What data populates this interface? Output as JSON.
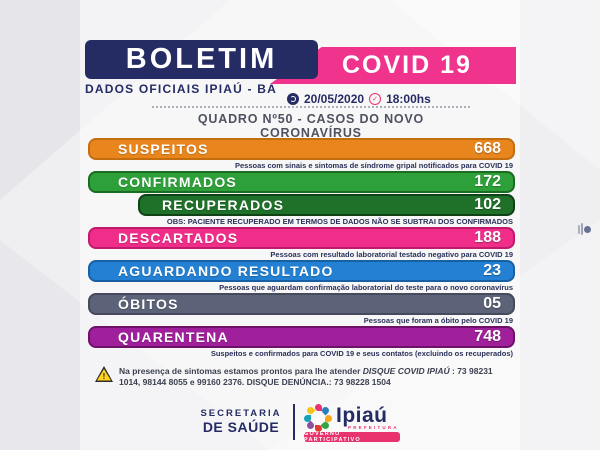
{
  "header": {
    "title": "BOLETIM",
    "subtitle": "DADOS OFICIAIS IPIAÚ - BA",
    "banner": "COVID 19",
    "date": "20/05/2020",
    "time": "18:00hs",
    "board_line": "QUADRO Nº50 - CASOS DO NOVO CORONAVÍRUS"
  },
  "stats": [
    {
      "label": "SUSPEITOS",
      "value": "668",
      "caption": "Pessoas com sinais e sintomas de síndrome gripal notificados para COVID 19",
      "color": "#E8861D",
      "border": "#C26E0F",
      "indent": false
    },
    {
      "label": "CONFIRMADOS",
      "value": "172",
      "caption": "",
      "color": "#2EA039",
      "border": "#1B6B23",
      "indent": false
    },
    {
      "label": "RECUPERADOS",
      "value": "102",
      "caption": "OBS: PACIENTE RECUPERADO EM TERMOS DE DADOS NÃO SE SUBTRAI DOS CONFIRMADOS",
      "color": "#1F7129",
      "border": "#114217",
      "indent": true
    },
    {
      "label": "DESCARTADOS",
      "value": "188",
      "caption": "Pessoas com resultado laboratorial testado negativo para COVID 19",
      "color": "#F02E8A",
      "border": "#C01A6C",
      "indent": false
    },
    {
      "label": "AGUARDANDO RESULTADO",
      "value": "23",
      "caption": "Pessoas que aguardam confirmação laboratorial do teste para o novo coronavírus",
      "color": "#2380D2",
      "border": "#1760A3",
      "indent": false
    },
    {
      "label": "ÓBITOS",
      "value": "05",
      "caption": "Pessoas que foram a óbito pelo COVID 19",
      "color": "#5C6277",
      "border": "#454A5C",
      "indent": false
    },
    {
      "label": "QUARENTENA",
      "value": "748",
      "caption": "Suspeitos e confirmados para COVID 19 e seus contatos (excluindo os recuperados)",
      "color": "#A0209C",
      "border": "#6E1169",
      "indent": false
    }
  ],
  "notice": {
    "warning_glyph": "!",
    "prefix": "Na presença de sintomas estamos prontos para lhe atender ",
    "hotline": "DISQUE COVID IPIAÚ",
    "suffix": " : 73 98231 1014, 98144 8055 e 99160 2376. DISQUE DENÚNCIA.: 73 98228 1504"
  },
  "footer": {
    "org_line1": "SECRETARIA",
    "org_line2": "DE SAÚDE",
    "logo_text": "Ipiaú",
    "logo_sub": "PREFEITURA",
    "logo_banner": "GOVERNO PARTICIPATIVO"
  },
  "icons": {
    "clock_glyph": "✓"
  },
  "colors": {
    "navy": "#252B63",
    "pink": "#F0338C",
    "background": "#EFEFF1",
    "dot_palette": [
      "#E8336E",
      "#2B7DC0",
      "#F5A81C",
      "#35A344",
      "#E23A2E",
      "#8E4F9F",
      "#17A2B8",
      "#F5C518"
    ]
  }
}
